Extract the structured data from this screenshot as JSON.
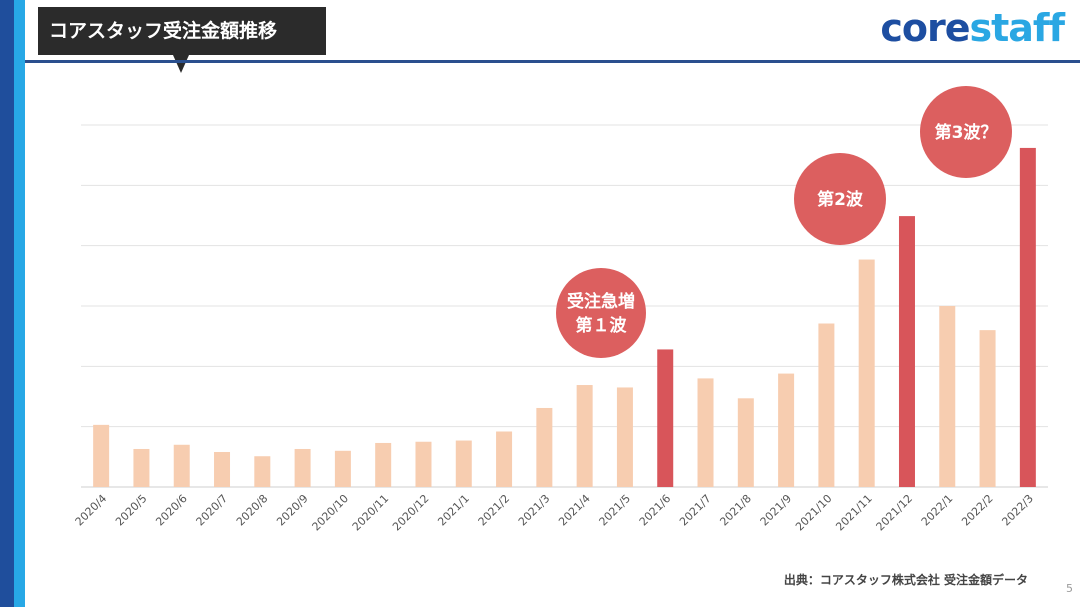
{
  "header": {
    "title": "コアスタッフ受注金額推移",
    "logo_core": "core",
    "logo_staff": "staff"
  },
  "footer": {
    "source": "出典：コアスタッフ株式会社 受注金額データ",
    "page_number": "5"
  },
  "colors": {
    "normal_bar": "#f7cdb0",
    "highlight_bar": "#d8555a",
    "bubble": "#dc5f5f",
    "gridline": "#e3e3e3",
    "brand_dark": "#1f4e9c",
    "brand_light": "#27a8e6"
  },
  "chart_data": {
    "type": "bar",
    "title": "",
    "xlabel": "",
    "ylabel": "",
    "ylim": [
      0,
      6
    ],
    "grid": true,
    "categories": [
      "2020/4",
      "2020/5",
      "2020/6",
      "2020/7",
      "2020/8",
      "2020/9",
      "2020/10",
      "2020/11",
      "2020/12",
      "2021/1",
      "2021/2",
      "2021/3",
      "2021/4",
      "2021/5",
      "2021/6",
      "2021/7",
      "2021/8",
      "2021/9",
      "2021/10",
      "2021/11",
      "2021/12",
      "2022/1",
      "2022/2",
      "2022/3"
    ],
    "values": [
      1.03,
      0.63,
      0.7,
      0.58,
      0.51,
      0.63,
      0.6,
      0.73,
      0.75,
      0.77,
      0.92,
      1.31,
      1.69,
      1.65,
      2.28,
      1.8,
      1.47,
      1.88,
      2.71,
      3.77,
      4.49,
      3.0,
      2.6,
      5.62
    ],
    "highlights": [
      "2021/6",
      "2021/12",
      "2022/3"
    ],
    "annotations": [
      {
        "lines": [
          "受注急増",
          "第１波"
        ],
        "category": "2021/6"
      },
      {
        "lines": [
          "第2波"
        ],
        "category": "2021/12"
      },
      {
        "lines": [
          "第3波？"
        ],
        "category": "2022/3"
      }
    ]
  }
}
